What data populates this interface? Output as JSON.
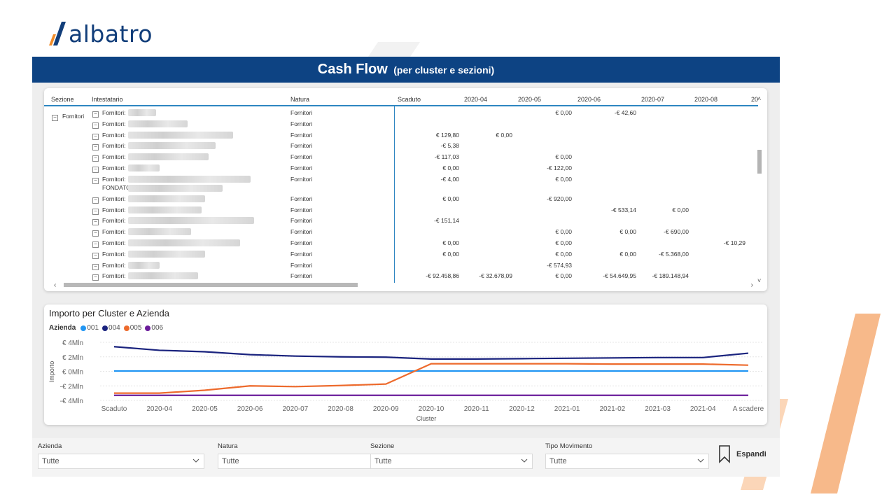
{
  "logo": {
    "text": "albatro"
  },
  "header": {
    "title": "Cash Flow",
    "subtitle": "(per cluster e sezioni)"
  },
  "colors": {
    "brand_blue": "#0d4383",
    "accent_orange": "#f4a460",
    "series_001": "#2196f3",
    "series_004": "#1a237e",
    "series_005": "#ed6a2c",
    "series_006": "#6a1b9a"
  },
  "matrix": {
    "headers": {
      "sezione": "Sezione",
      "intestatario": "Intestatario",
      "natura": "Natura",
      "scaduto": "Scaduto",
      "m04": "2020-04",
      "m05": "2020-05",
      "m06": "2020-06",
      "m07": "2020-07",
      "m08": "2020-08",
      "m09": "20"
    },
    "section_label": "Fornitori",
    "rows": [
      {
        "name": "Fornitori:",
        "natura": "Fornitori",
        "scaduto": "",
        "m04": "",
        "m05": "€ 0,00",
        "m06": "-€ 42,60",
        "m07": "",
        "m08": ""
      },
      {
        "name": "Fornitori:",
        "natura": "Fornitori",
        "scaduto": "",
        "m04": "",
        "m05": "",
        "m06": "",
        "m07": "",
        "m08": ""
      },
      {
        "name": "Fornitori:",
        "natura": "Fornitori",
        "scaduto": "€ 129,80",
        "m04": "€ 0,00",
        "m05": "",
        "m06": "",
        "m07": "",
        "m08": ""
      },
      {
        "name": "Fornitori:",
        "natura": "Fornitori",
        "scaduto": "-€ 5,38",
        "m04": "",
        "m05": "",
        "m06": "",
        "m07": "",
        "m08": ""
      },
      {
        "name": "Fornitori:",
        "natura": "Fornitori",
        "scaduto": "-€ 117,03",
        "m04": "",
        "m05": "€ 0,00",
        "m06": "",
        "m07": "",
        "m08": ""
      },
      {
        "name": "Fornitori:",
        "natura": "Fornitori",
        "scaduto": "€ 0,00",
        "m04": "",
        "m05": "-€ 122,00",
        "m06": "",
        "m07": "",
        "m08": ""
      },
      {
        "name": "Fornitori:",
        "name2": "FONDATO",
        "natura": "Fornitori",
        "scaduto": "-€ 4,00",
        "m04": "",
        "m05": "€ 0,00",
        "m06": "",
        "m07": "",
        "m08": ""
      },
      {
        "name": "Fornitori:",
        "natura": "Fornitori",
        "scaduto": "€ 0,00",
        "m04": "",
        "m05": "-€ 920,00",
        "m06": "",
        "m07": "",
        "m08": ""
      },
      {
        "name": "Fornitori:",
        "natura": "Fornitori",
        "scaduto": "",
        "m04": "",
        "m05": "",
        "m06": "-€ 533,14",
        "m07": "€ 0,00",
        "m08": ""
      },
      {
        "name": "Fornitori:",
        "natura": "Fornitori",
        "scaduto": "-€ 151,14",
        "m04": "",
        "m05": "",
        "m06": "",
        "m07": "",
        "m08": ""
      },
      {
        "name": "Fornitori:",
        "natura": "Fornitori",
        "scaduto": "",
        "m04": "",
        "m05": "€ 0,00",
        "m06": "€ 0,00",
        "m07": "-€ 690,00",
        "m08": ""
      },
      {
        "name": "Fornitori:",
        "natura": "Fornitori",
        "scaduto": "€ 0,00",
        "m04": "",
        "m05": "€ 0,00",
        "m06": "",
        "m07": "",
        "m08": "-€ 10,29"
      },
      {
        "name": "Fornitori:",
        "natura": "Fornitori",
        "scaduto": "€ 0,00",
        "m04": "",
        "m05": "€ 0,00",
        "m06": "€ 0,00",
        "m07": "-€ 5.368,00",
        "m08": ""
      },
      {
        "name": "Fornitori:",
        "natura": "Fornitori",
        "scaduto": "",
        "m04": "",
        "m05": "-€ 574,93",
        "m06": "",
        "m07": "",
        "m08": ""
      },
      {
        "name": "Fornitori:",
        "natura": "Fornitori",
        "scaduto": "-€ 92.458,86",
        "m04": "-€ 32.678,09",
        "m05": "€ 0,00",
        "m06": "-€ 54.649,95",
        "m07": "-€ 189.148,94",
        "m08": ""
      }
    ]
  },
  "chart_title": "Importo per Cluster e Azienda",
  "chart_data": {
    "type": "line",
    "title": "Importo per Cluster e Azienda",
    "legend_title": "Azienda",
    "xlabel": "Cluster",
    "ylabel": "Importo",
    "categories": [
      "Scaduto",
      "2020-04",
      "2020-05",
      "2020-06",
      "2020-07",
      "2020-08",
      "2020-09",
      "2020-10",
      "2020-11",
      "2020-12",
      "2021-01",
      "2021-02",
      "2021-03",
      "2021-04",
      "A scadere"
    ],
    "ytick_labels": [
      "€ 4Mln",
      "€ 2Mln",
      "€ 0Mln",
      "-€ 2Mln",
      "-€ 4Mln"
    ],
    "ylim": [
      -4,
      4
    ],
    "grid": true,
    "legend_position": "top-left",
    "series": [
      {
        "name": "001",
        "color": "#2196f3",
        "values": [
          0.05,
          0.05,
          0.05,
          0.05,
          0.05,
          0.05,
          0.05,
          0.05,
          0.05,
          0.05,
          0.05,
          0.05,
          0.05,
          0.05,
          0.05
        ]
      },
      {
        "name": "004",
        "color": "#1a237e",
        "values": [
          3.4,
          2.9,
          2.7,
          2.3,
          2.1,
          2.0,
          1.95,
          1.7,
          1.7,
          1.75,
          1.8,
          1.85,
          1.9,
          1.9,
          2.5
        ]
      },
      {
        "name": "005",
        "color": "#ed6a2c",
        "values": [
          -3.0,
          -3.0,
          -2.6,
          -2.0,
          -2.1,
          -1.95,
          -1.75,
          1.05,
          1.05,
          1.05,
          1.05,
          1.0,
          1.0,
          1.0,
          0.85
        ]
      },
      {
        "name": "006",
        "color": "#6a1b9a",
        "values": [
          -3.3,
          -3.3,
          -3.3,
          -3.3,
          -3.3,
          -3.3,
          -3.3,
          -3.3,
          -3.3,
          -3.3,
          -3.3,
          -3.3,
          -3.3,
          -3.3,
          -3.3
        ]
      }
    ]
  },
  "filters": [
    {
      "label": "Azienda",
      "value": "Tutte"
    },
    {
      "label": "Natura",
      "value": "Tutte"
    },
    {
      "label": "Sezione",
      "value": "Tutte"
    },
    {
      "label": "Tipo Movimento",
      "value": "Tutte"
    }
  ],
  "espandi": {
    "label": "Espandi"
  }
}
